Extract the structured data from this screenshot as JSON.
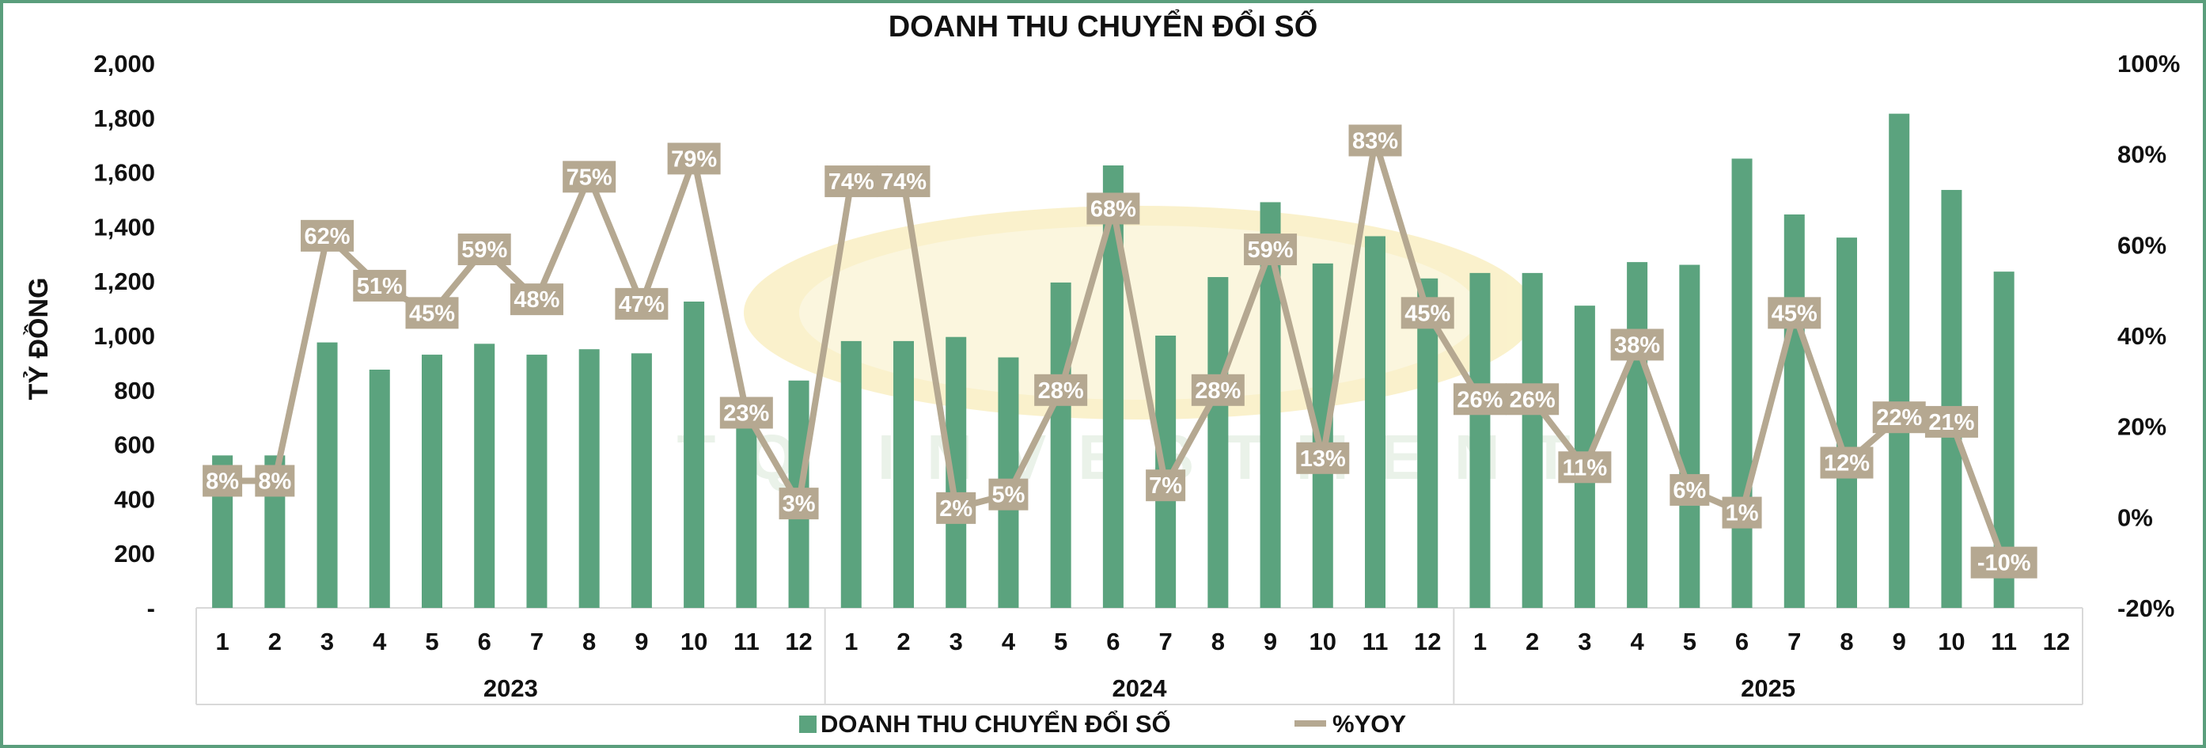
{
  "chart_data": {
    "type": "bar+line",
    "title": "DOANH THU CHUYỂN ĐỔI SỐ",
    "ylabel": "TỶ ĐỒNG",
    "ylim": [
      0,
      2000
    ],
    "y2lim": [
      -20,
      100
    ],
    "y_ticks": [
      "-",
      "200",
      "400",
      "600",
      "800",
      "1,000",
      "1,200",
      "1,400",
      "1,600",
      "1,800",
      "2,000"
    ],
    "y2_ticks": [
      "-20%",
      "0%",
      "20%",
      "40%",
      "60%",
      "80%",
      "100%"
    ],
    "groups": [
      {
        "label": "2023",
        "months": [
          "1",
          "2",
          "3",
          "4",
          "5",
          "6",
          "7",
          "8",
          "9",
          "10",
          "11",
          "12"
        ]
      },
      {
        "label": "2024",
        "months": [
          "1",
          "2",
          "3",
          "4",
          "5",
          "6",
          "7",
          "8",
          "9",
          "10",
          "11",
          "12"
        ]
      },
      {
        "label": "2025",
        "months": [
          "1",
          "2",
          "3",
          "4",
          "5",
          "6",
          "7",
          "8",
          "9",
          "10",
          "11",
          "12"
        ]
      }
    ],
    "series": [
      {
        "name": "DOANH THU CHUYỂN ĐỔI SỐ",
        "kind": "bar",
        "axis": "left",
        "color": "#5ba37e",
        "values": [
          560,
          560,
          975,
          875,
          930,
          970,
          930,
          950,
          935,
          1125,
          700,
          835,
          980,
          980,
          995,
          920,
          1195,
          1625,
          1000,
          1215,
          1490,
          1265,
          1365,
          1210,
          1230,
          1230,
          1110,
          1270,
          1260,
          1650,
          1445,
          1360,
          1815,
          1535,
          1235,
          null
        ]
      },
      {
        "name": "%YOY",
        "kind": "line",
        "axis": "right",
        "color": "#b5a891",
        "values": [
          8,
          8,
          62,
          51,
          45,
          59,
          48,
          75,
          47,
          79,
          23,
          3,
          74,
          74,
          2,
          5,
          28,
          68,
          7,
          28,
          59,
          13,
          83,
          45,
          26,
          26,
          11,
          38,
          6,
          1,
          45,
          12,
          22,
          21,
          -10,
          null
        ],
        "labels": [
          "8%",
          "8%",
          "62%",
          "51%",
          "45%",
          "59%",
          "48%",
          "75%",
          "47%",
          "79%",
          "23%",
          "3%",
          "74%",
          "74%",
          "2%",
          "5%",
          "28%",
          "68%",
          "7%",
          "28%",
          "59%",
          "13%",
          "83%",
          "45%",
          "26%",
          "26%",
          "11%",
          "38%",
          "6%",
          "1%",
          "45%",
          "12%",
          "22%",
          "21%",
          "-10%",
          ""
        ]
      }
    ],
    "legend": {
      "position": "bottom"
    },
    "grid": false
  },
  "watermark": {
    "text": "TQ INVESTMENT"
  }
}
